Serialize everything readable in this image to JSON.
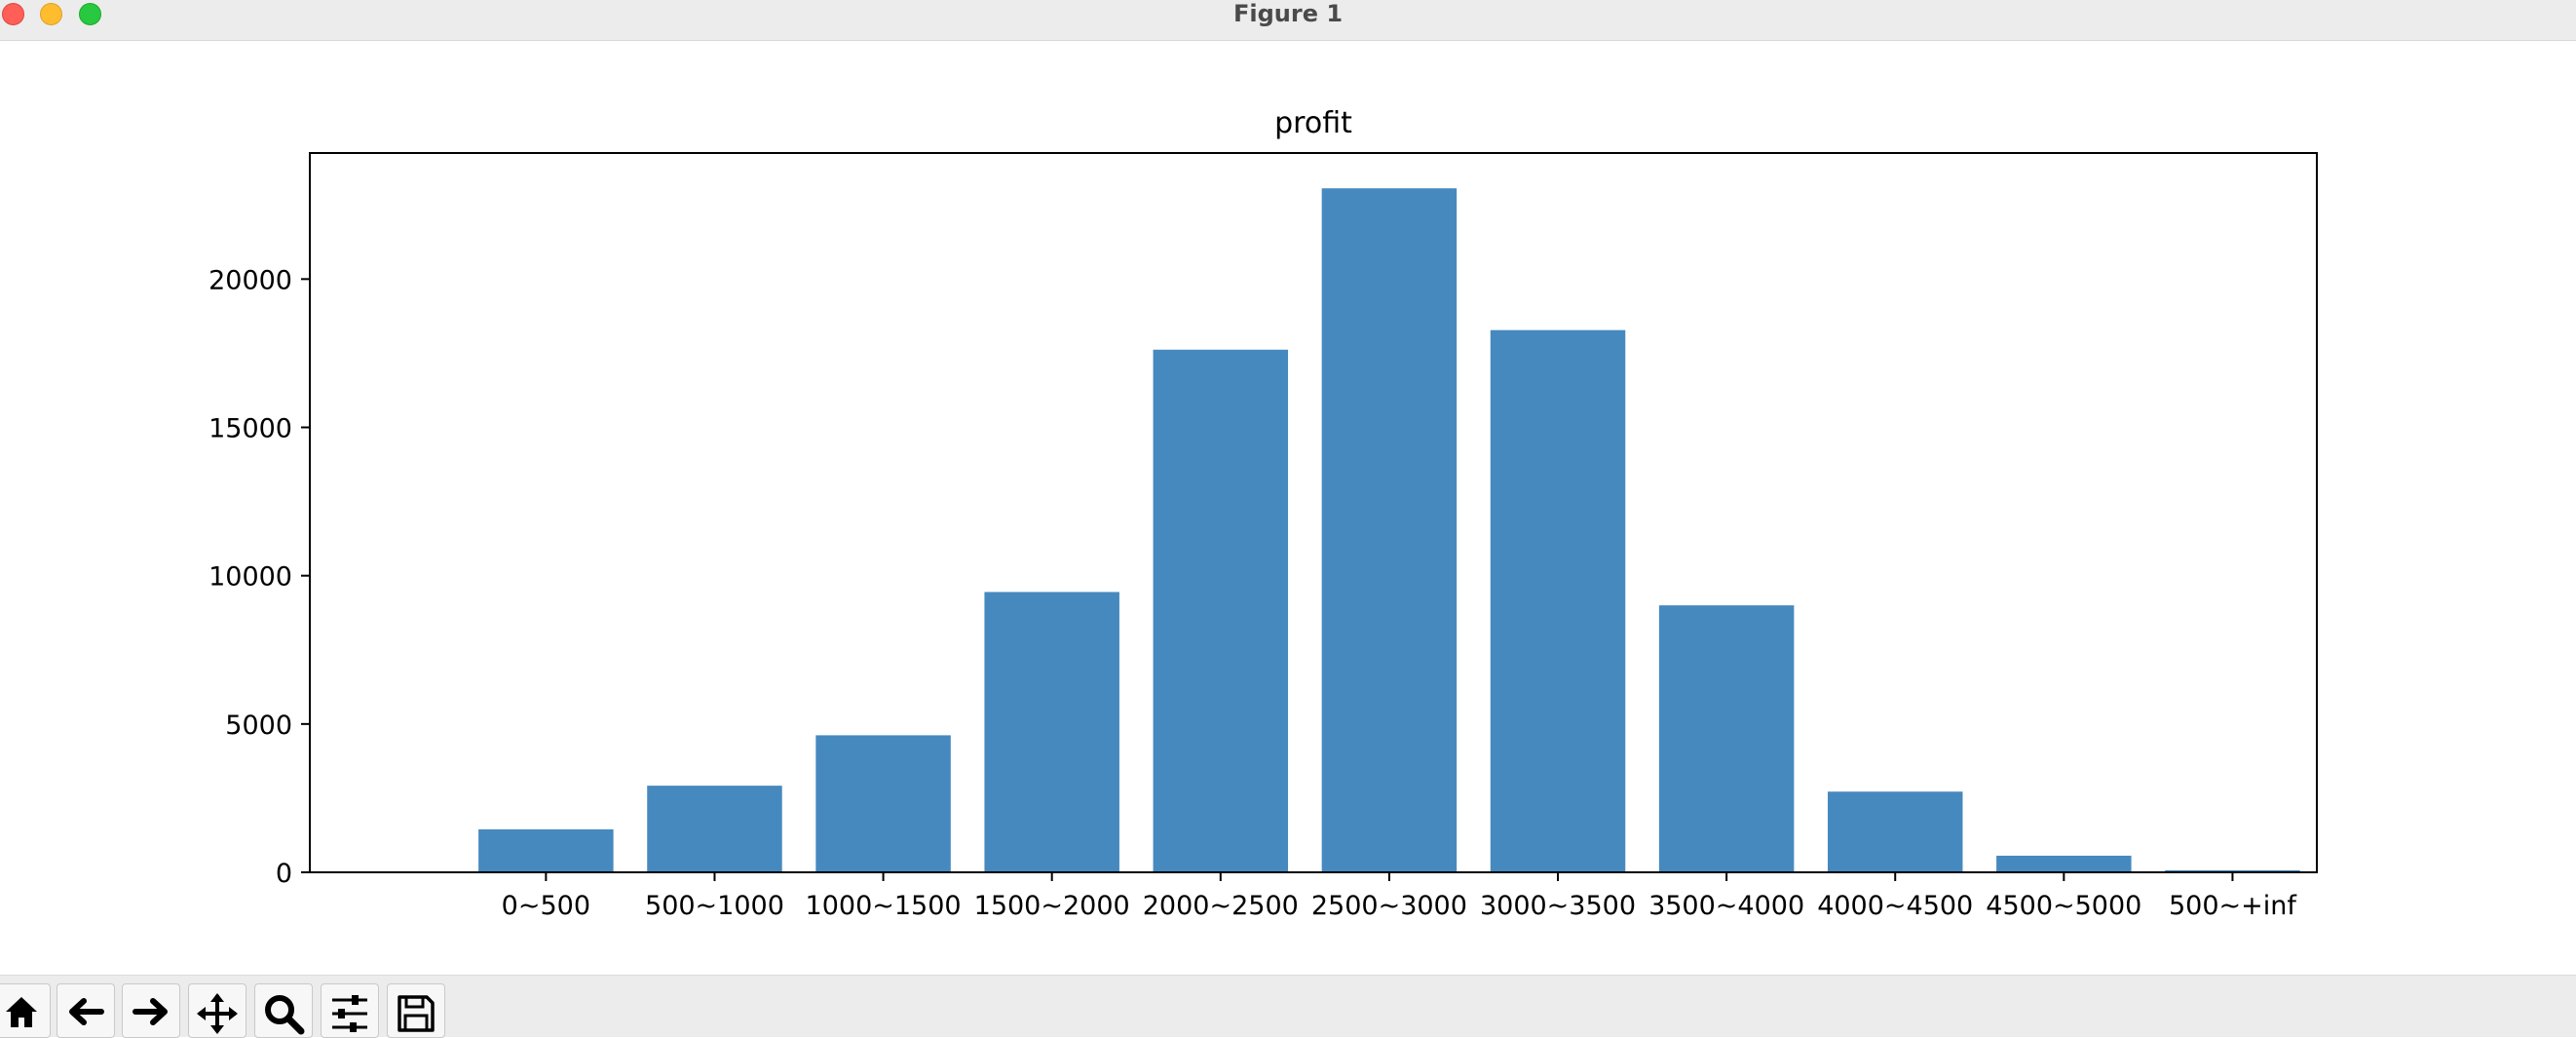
{
  "window": {
    "title": "Figure 1"
  },
  "toolbar": {
    "buttons": [
      {
        "name": "home",
        "icon": "home-icon"
      },
      {
        "name": "back",
        "icon": "arrow-left-icon"
      },
      {
        "name": "forward",
        "icon": "arrow-right-icon"
      },
      {
        "name": "pan",
        "icon": "move-icon"
      },
      {
        "name": "zoom",
        "icon": "magnifier-icon"
      },
      {
        "name": "configure-subplots",
        "icon": "sliders-icon"
      },
      {
        "name": "save",
        "icon": "floppy-disk-icon"
      }
    ]
  },
  "chart_data": {
    "type": "bar",
    "title": "profit",
    "xlabel": "",
    "ylabel": "",
    "categories": [
      "0~500",
      "500~1000",
      "1000~1500",
      "1500~2000",
      "2000~2500",
      "2500~3000",
      "3000~3500",
      "3500~4000",
      "4000~4500",
      "4500~5000",
      "500~+inf"
    ],
    "values": [
      1450,
      2920,
      4620,
      9450,
      17620,
      23060,
      18280,
      9000,
      2720,
      560,
      70
    ],
    "ylim": [
      0,
      24250
    ],
    "yticks": [
      0,
      5000,
      10000,
      15000,
      20000
    ],
    "xlim": [
      -1.4,
      10.5
    ],
    "bar_color": "#4689bf",
    "grid": false
  }
}
